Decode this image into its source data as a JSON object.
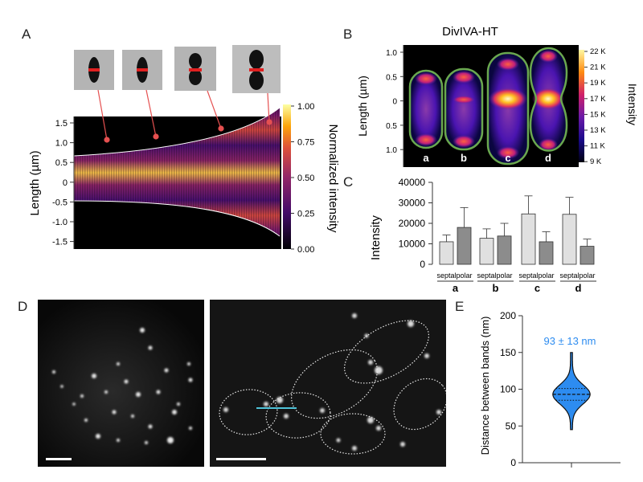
{
  "panels": {
    "A": "A",
    "B": "B",
    "C": "C",
    "D": "D",
    "E": "E"
  },
  "colors": {
    "inferno_dark": "#000004",
    "inferno_purple": "#5a0f6e",
    "inferno_red": "#c53b4a",
    "inferno_orange": "#f58b0b",
    "inferno_yellow": "#fcffa4",
    "gray_bar_light": "#e0e0e0",
    "gray_bar_dark": "#8c8c8c",
    "violin_blue": "#2d8cf0",
    "annotation_blue": "#2d8cf0",
    "cell_outline": "#6aa84f",
    "line_cyan": "#4fc3d9"
  },
  "panel_a": {
    "ylabel": "Length (µm)",
    "yticks": [
      "1.5",
      "1.0",
      "0.5",
      "0",
      "-0.5",
      "-1.0",
      "-1.5"
    ],
    "colorbar_label": "Normalized intensity",
    "colorbar_ticks": [
      "1.00",
      "0.75",
      "0.50",
      "0.25",
      "0.00"
    ]
  },
  "panel_b": {
    "title": "DivIVA-HT",
    "ylabel": "Length (µm)",
    "yticks": [
      "1.0",
      "0.5",
      "0",
      "0.5",
      "1.0"
    ],
    "colorbar_label": "Intensity",
    "colorbar_ticks": [
      "22 K",
      "21 K",
      "19 K",
      "17 K",
      "15 K",
      "13 K",
      "11 K",
      "9 K"
    ],
    "cells": [
      "a",
      "b",
      "c",
      "d"
    ]
  },
  "chart_data": [
    {
      "type": "bar",
      "panel": "C",
      "ylabel": "Intensity",
      "ylim": [
        0,
        40000
      ],
      "yticks": [
        "0",
        "10000",
        "20000",
        "30000",
        "40000"
      ],
      "groups": [
        "a",
        "b",
        "c",
        "d"
      ],
      "categories": [
        "septal",
        "polar",
        "septal",
        "polar",
        "septal",
        "polar",
        "septal",
        "polar"
      ],
      "values": [
        11000,
        18000,
        12700,
        13800,
        24600,
        11000,
        24400,
        8800
      ],
      "errors": [
        3300,
        9700,
        4600,
        6200,
        8800,
        4900,
        8300,
        3500
      ]
    },
    {
      "type": "violin",
      "panel": "E",
      "ylabel": "Distance between bands (nm)",
      "ylim": [
        0,
        200
      ],
      "yticks": [
        "0",
        "50",
        "100",
        "150",
        "200"
      ],
      "annotation": "93 ± 13 nm",
      "median": 93,
      "q1": 85,
      "q3": 101,
      "min": 45,
      "max": 150
    }
  ]
}
